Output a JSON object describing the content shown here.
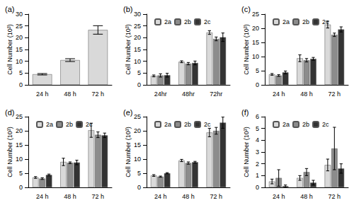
{
  "chart_data": [
    {
      "type": "bar",
      "title": "(a)",
      "y_label": "Cell Number (10³)",
      "categories": [
        "24 h",
        "48 h",
        "72 h"
      ],
      "values": [
        4.5,
        10.5,
        23.3
      ],
      "errors": [
        0.3,
        0.6,
        1.8
      ],
      "color": "#d9d9d9",
      "ylim": [
        0,
        30
      ],
      "yticks": [
        0,
        5,
        10,
        15,
        20,
        25,
        30
      ]
    },
    {
      "type": "bar",
      "title": "(b)",
      "y_label": "Cell Number (10³)",
      "categories": [
        "24hr",
        "48hr",
        "72hr"
      ],
      "series": [
        {
          "name": "2a",
          "color": "#d9d9d9",
          "values": [
            3.8,
            9.8,
            22.2
          ],
          "errors": [
            0.4,
            0.4,
            0.8
          ]
        },
        {
          "name": "2b",
          "color": "#8c8c8c",
          "values": [
            4.0,
            9.0,
            19.5
          ],
          "errors": [
            0.7,
            0.5,
            0.8
          ]
        },
        {
          "name": "2c",
          "color": "#333333",
          "values": [
            4.1,
            9.3,
            20.2
          ],
          "errors": [
            0.8,
            0.8,
            1.8
          ]
        }
      ],
      "ylim": [
        0,
        30
      ],
      "yticks": [
        0,
        5,
        10,
        15,
        20,
        25,
        30
      ],
      "legend": "upper left"
    },
    {
      "type": "bar",
      "title": "(c)",
      "y_label": "Cell Number (10³)",
      "categories": [
        "24 h",
        "48 h",
        "72 h"
      ],
      "series": [
        {
          "name": "2a",
          "color": "#d9d9d9",
          "values": [
            3.7,
            9.4,
            21.3
          ],
          "errors": [
            0.3,
            1.2,
            1.2
          ]
        },
        {
          "name": "2b",
          "color": "#8c8c8c",
          "values": [
            3.3,
            8.7,
            17.7
          ],
          "errors": [
            0.3,
            0.6,
            0.6
          ]
        },
        {
          "name": "2c",
          "color": "#333333",
          "values": [
            4.4,
            9.2,
            19.6
          ],
          "errors": [
            0.5,
            0.5,
            0.9
          ]
        }
      ],
      "ylim": [
        0,
        25
      ],
      "yticks": [
        0,
        5,
        10,
        15,
        20,
        25
      ],
      "legend": "upper left"
    },
    {
      "type": "bar",
      "title": "(d)",
      "y_label": "Cell Number (10³)",
      "categories": [
        "24 h",
        "48 h",
        "72 h"
      ],
      "series": [
        {
          "name": "2a",
          "color": "#d9d9d9",
          "values": [
            3.5,
            9.0,
            20.2
          ],
          "errors": [
            0.3,
            1.3,
            2.5
          ]
        },
        {
          "name": "2b",
          "color": "#8c8c8c",
          "values": [
            3.1,
            8.7,
            18.6
          ],
          "errors": [
            0.3,
            0.3,
            1.0
          ]
        },
        {
          "name": "2c",
          "color": "#333333",
          "values": [
            4.4,
            8.8,
            18.4
          ],
          "errors": [
            0.3,
            0.8,
            0.8
          ]
        }
      ],
      "ylim": [
        0,
        25
      ],
      "yticks": [
        0,
        5,
        10,
        15,
        20,
        25
      ],
      "legend": "upper left"
    },
    {
      "type": "bar",
      "title": "(e)",
      "y_label": "Cell Number (10³)",
      "categories": [
        "24 h",
        "48 h",
        "72 h"
      ],
      "series": [
        {
          "name": "2a",
          "color": "#d9d9d9",
          "values": [
            4.2,
            9.5,
            19.4
          ],
          "errors": [
            0.3,
            0.4,
            1.5
          ]
        },
        {
          "name": "2b",
          "color": "#8c8c8c",
          "values": [
            3.8,
            8.6,
            20.0
          ],
          "errors": [
            0.2,
            0.4,
            1.2
          ]
        },
        {
          "name": "2c",
          "color": "#333333",
          "values": [
            5.0,
            8.9,
            22.9
          ],
          "errors": [
            0.2,
            0.3,
            2.0
          ]
        }
      ],
      "ylim": [
        0,
        25
      ],
      "yticks": [
        0,
        5,
        10,
        15,
        20,
        25
      ],
      "legend": "upper left"
    },
    {
      "type": "bar",
      "title": "(f)",
      "y_label": "Cell Number (10³)",
      "categories": [
        "24 h",
        "48 h",
        "72 h"
      ],
      "series": [
        {
          "name": "2a",
          "color": "#d9d9d9",
          "values": [
            0.5,
            0.8,
            1.9
          ],
          "errors": [
            0.2,
            0.2,
            0.5
          ]
        },
        {
          "name": "2b",
          "color": "#8c8c8c",
          "values": [
            0.8,
            1.3,
            3.3
          ],
          "errors": [
            0.7,
            0.3,
            1.8
          ]
        },
        {
          "name": "2c",
          "color": "#333333",
          "values": [
            0.1,
            0.4,
            1.6
          ],
          "errors": [
            0.1,
            0.2,
            0.4
          ]
        }
      ],
      "ylim": [
        0,
        6
      ],
      "yticks": [
        0,
        1,
        2,
        3,
        4,
        5,
        6
      ],
      "legend": "upper left"
    }
  ]
}
